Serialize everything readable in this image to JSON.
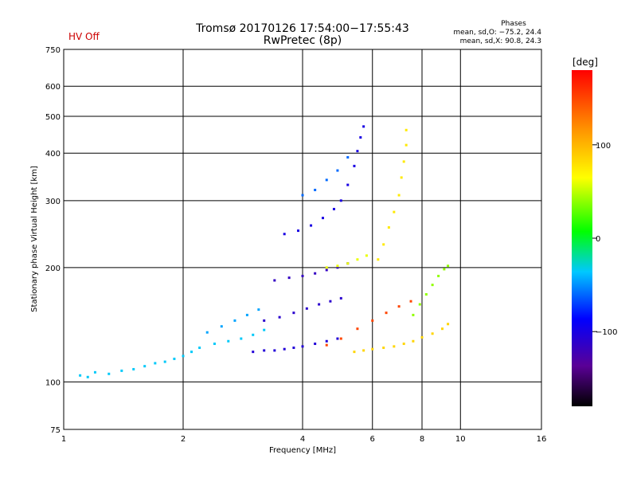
{
  "header": {
    "title_line1": "Tromsø 20170126 17:54:00−17:55:43",
    "title_line2": "RwPretec (8p)",
    "status": "HV Off",
    "phases_title": "Phases",
    "phases_o": "mean, sd,O: −75.2, 24.4",
    "phases_x": "mean, sd,X:  90.8, 24.3"
  },
  "colors": {
    "status_text": "#cc0000",
    "grid": "#000000",
    "colormap": [
      "#000000",
      "#5a0096",
      "#0000ff",
      "#00c8ff",
      "#00ff00",
      "#ffff00",
      "#ff9600",
      "#ff0000"
    ]
  },
  "chart_data": {
    "type": "scatter",
    "title": "Tromsø 20170126 17:54:00−17:55:43",
    "subtitle": "RwPretec (8p)",
    "xlabel": "Frequency [MHz]",
    "ylabel": "Stationary phase Virtual Height [km]",
    "x_scale": "log",
    "y_scale": "log",
    "xlim": [
      1,
      16
    ],
    "ylim": [
      75,
      750
    ],
    "x_ticks": [
      1,
      2,
      4,
      6,
      8,
      10,
      16
    ],
    "x_tick_labels": [
      "1",
      "2",
      "4",
      "6",
      "8",
      "10",
      "16"
    ],
    "y_ticks": [
      75,
      100,
      200,
      300,
      400,
      500,
      600,
      750
    ],
    "y_tick_labels": [
      "75",
      "100",
      "200",
      "300",
      "400",
      "500",
      "600",
      "750"
    ],
    "grid": true,
    "colorbar": {
      "label": "[deg]",
      "ticks": [
        100,
        0,
        -100
      ],
      "tick_labels": [
        "100",
        "0",
        "−100"
      ],
      "range": [
        -180,
        180
      ]
    },
    "traces": [
      {
        "name": "",
        "phase": -35,
        "points": [
          [
            1.1,
            104
          ],
          [
            1.15,
            103
          ],
          [
            1.2,
            106
          ],
          [
            1.3,
            105
          ],
          [
            1.4,
            107
          ],
          [
            1.5,
            108
          ],
          [
            1.6,
            110
          ],
          [
            1.7,
            112
          ],
          [
            1.8,
            113
          ],
          [
            1.9,
            115
          ],
          [
            2.0,
            117
          ],
          [
            2.1,
            120
          ],
          [
            2.2,
            123
          ],
          [
            2.4,
            126
          ],
          [
            2.6,
            128
          ],
          [
            2.8,
            130
          ],
          [
            3.0,
            133
          ],
          [
            3.2,
            137
          ]
        ]
      },
      {
        "name": "",
        "phase": -45,
        "points": [
          [
            2.3,
            135
          ],
          [
            2.5,
            140
          ],
          [
            2.7,
            145
          ],
          [
            2.9,
            150
          ],
          [
            3.1,
            155
          ]
        ]
      },
      {
        "name": "",
        "phase": -105,
        "points": [
          [
            3.0,
            120
          ],
          [
            3.2,
            121
          ],
          [
            3.4,
            121
          ],
          [
            3.6,
            122
          ],
          [
            3.8,
            123
          ],
          [
            4.0,
            124
          ],
          [
            4.3,
            126
          ],
          [
            4.6,
            128
          ],
          [
            4.9,
            130
          ]
        ]
      },
      {
        "name": "",
        "phase": -110,
        "points": [
          [
            3.2,
            145
          ],
          [
            3.5,
            148
          ],
          [
            3.8,
            152
          ],
          [
            4.1,
            156
          ],
          [
            4.4,
            160
          ],
          [
            4.7,
            163
          ],
          [
            5.0,
            166
          ]
        ]
      },
      {
        "name": "",
        "phase": -115,
        "points": [
          [
            3.4,
            185
          ],
          [
            3.7,
            188
          ],
          [
            4.0,
            190
          ],
          [
            4.3,
            193
          ],
          [
            4.6,
            197
          ],
          [
            4.9,
            200
          ],
          [
            5.2,
            205
          ]
        ]
      },
      {
        "name": "",
        "phase": -100,
        "points": [
          [
            3.6,
            245
          ],
          [
            3.9,
            250
          ],
          [
            4.2,
            258
          ],
          [
            4.5,
            270
          ],
          [
            4.8,
            285
          ],
          [
            5.0,
            300
          ],
          [
            5.2,
            330
          ],
          [
            5.4,
            370
          ],
          [
            5.5,
            405
          ],
          [
            5.6,
            440
          ],
          [
            5.7,
            470
          ]
        ]
      },
      {
        "name": "",
        "phase": -60,
        "points": [
          [
            4.0,
            310
          ],
          [
            4.3,
            320
          ],
          [
            4.6,
            340
          ],
          [
            4.9,
            360
          ],
          [
            5.2,
            390
          ]
        ]
      },
      {
        "name": "",
        "phase": 60,
        "points": [
          [
            4.6,
            200
          ],
          [
            4.9,
            202
          ],
          [
            5.2,
            205
          ],
          [
            5.5,
            210
          ],
          [
            5.8,
            215
          ]
        ]
      },
      {
        "name": "",
        "phase": 85,
        "points": [
          [
            5.4,
            120
          ],
          [
            5.7,
            121
          ],
          [
            6.0,
            122
          ],
          [
            6.4,
            123
          ],
          [
            6.8,
            124
          ],
          [
            7.2,
            126
          ],
          [
            7.6,
            128
          ],
          [
            8.0,
            131
          ],
          [
            8.5,
            134
          ],
          [
            9.0,
            138
          ],
          [
            9.3,
            142
          ]
        ]
      },
      {
        "name": "",
        "phase": 75,
        "points": [
          [
            6.2,
            210
          ],
          [
            6.4,
            230
          ],
          [
            6.6,
            255
          ],
          [
            6.8,
            280
          ],
          [
            7.0,
            310
          ],
          [
            7.1,
            345
          ],
          [
            7.2,
            380
          ],
          [
            7.3,
            420
          ],
          [
            7.3,
            460
          ]
        ]
      },
      {
        "name": "",
        "phase": 40,
        "points": [
          [
            7.6,
            150
          ],
          [
            7.9,
            160
          ],
          [
            8.2,
            170
          ],
          [
            8.5,
            180
          ],
          [
            8.8,
            190
          ],
          [
            9.1,
            198
          ],
          [
            9.3,
            202
          ]
        ]
      },
      {
        "name": "",
        "phase": 150,
        "points": [
          [
            4.6,
            125
          ],
          [
            5.0,
            130
          ],
          [
            5.5,
            138
          ],
          [
            6.0,
            145
          ],
          [
            6.5,
            152
          ],
          [
            7.0,
            158
          ],
          [
            7.5,
            163
          ]
        ]
      }
    ]
  }
}
